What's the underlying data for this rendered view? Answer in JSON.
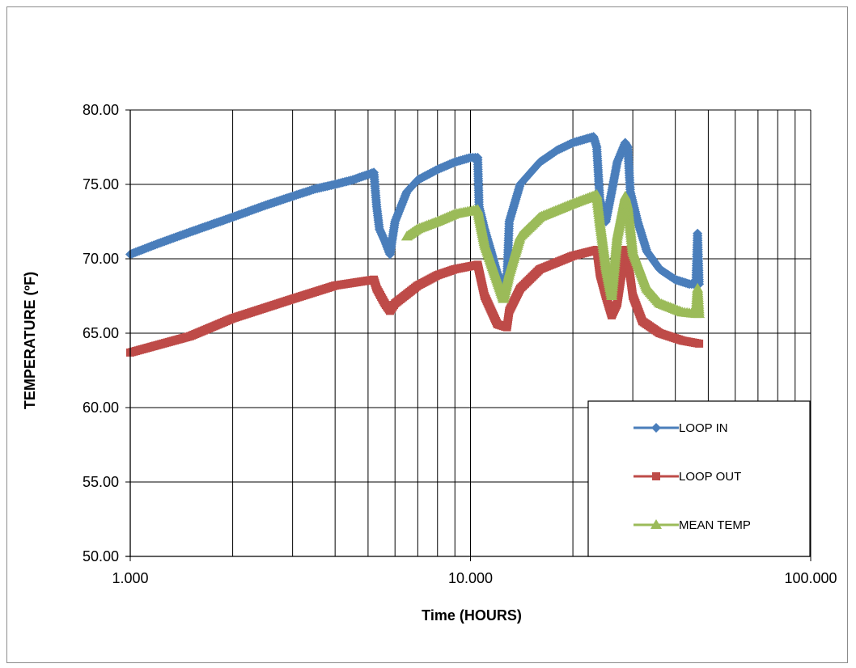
{
  "chart_data": {
    "type": "line",
    "title": "",
    "xlabel": "Time (HOURS)",
    "ylabel": "TEMPERATURE (ºF)",
    "x_scale": "log",
    "xlim": [
      1,
      100
    ],
    "ylim": [
      50,
      80
    ],
    "x_ticks": [
      "1.000",
      "10.000",
      "100.000"
    ],
    "y_ticks": [
      "50.00",
      "55.00",
      "60.00",
      "65.00",
      "70.00",
      "75.00",
      "80.00"
    ],
    "grid": {
      "vertical_major_and_minor": true,
      "horizontal_major": true
    },
    "legend_position": "lower-right",
    "series": [
      {
        "name": "LOOP IN",
        "color": "#4A7EBB",
        "marker": "diamond",
        "points": [
          [
            1.0,
            70.3
          ],
          [
            1.2,
            71.0
          ],
          [
            1.5,
            71.8
          ],
          [
            2.0,
            72.8
          ],
          [
            2.5,
            73.6
          ],
          [
            3.0,
            74.2
          ],
          [
            3.5,
            74.7
          ],
          [
            4.0,
            75.0
          ],
          [
            4.5,
            75.3
          ],
          [
            5.2,
            75.8
          ],
          [
            5.3,
            73.5
          ],
          [
            5.4,
            72.0
          ],
          [
            5.6,
            71.2
          ],
          [
            5.8,
            70.3
          ],
          [
            6.0,
            72.5
          ],
          [
            6.5,
            74.5
          ],
          [
            7.0,
            75.3
          ],
          [
            8.0,
            76.0
          ],
          [
            9.0,
            76.5
          ],
          [
            10.0,
            76.8
          ],
          [
            10.5,
            76.8
          ],
          [
            10.6,
            73.5
          ],
          [
            11.0,
            72.0
          ],
          [
            11.5,
            70.5
          ],
          [
            12.0,
            69.0
          ],
          [
            12.5,
            68.5
          ],
          [
            12.8,
            68.7
          ],
          [
            13.0,
            72.5
          ],
          [
            14.0,
            75.0
          ],
          [
            16.0,
            76.5
          ],
          [
            18.0,
            77.3
          ],
          [
            20.0,
            77.8
          ],
          [
            23.0,
            78.2
          ],
          [
            23.5,
            77.5
          ],
          [
            24.0,
            74.0
          ],
          [
            25.0,
            72.5
          ],
          [
            26.0,
            74.5
          ],
          [
            27.0,
            76.5
          ],
          [
            28.5,
            77.8
          ],
          [
            29.0,
            77.5
          ],
          [
            29.5,
            74.5
          ],
          [
            31.0,
            72.5
          ],
          [
            33.0,
            70.5
          ],
          [
            36.0,
            69.3
          ],
          [
            40.0,
            68.6
          ],
          [
            44.0,
            68.3
          ],
          [
            46.0,
            68.3
          ],
          [
            46.5,
            71.7
          ],
          [
            47.0,
            68.3
          ]
        ]
      },
      {
        "name": "LOOP OUT",
        "color": "#BE4B48",
        "marker": "square",
        "points": [
          [
            1.0,
            63.7
          ],
          [
            1.5,
            64.8
          ],
          [
            2.0,
            66.0
          ],
          [
            3.0,
            67.3
          ],
          [
            4.0,
            68.2
          ],
          [
            5.2,
            68.6
          ],
          [
            5.3,
            68.0
          ],
          [
            5.6,
            67.0
          ],
          [
            5.8,
            66.5
          ],
          [
            6.0,
            67.0
          ],
          [
            7.0,
            68.2
          ],
          [
            8.0,
            68.9
          ],
          [
            9.0,
            69.3
          ],
          [
            10.5,
            69.6
          ],
          [
            11.0,
            67.5
          ],
          [
            12.0,
            65.6
          ],
          [
            12.8,
            65.4
          ],
          [
            13.0,
            66.5
          ],
          [
            14.0,
            68.0
          ],
          [
            16.0,
            69.3
          ],
          [
            20.0,
            70.2
          ],
          [
            23.5,
            70.6
          ],
          [
            24.0,
            69.0
          ],
          [
            25.0,
            67.5
          ],
          [
            26.0,
            66.2
          ],
          [
            27.0,
            67.0
          ],
          [
            28.5,
            70.6
          ],
          [
            29.0,
            70.0
          ],
          [
            30.0,
            67.5
          ],
          [
            32.0,
            65.8
          ],
          [
            36.0,
            65.0
          ],
          [
            42.0,
            64.5
          ],
          [
            47.0,
            64.3
          ]
        ]
      },
      {
        "name": "MEAN TEMP",
        "color": "#9BBB59",
        "marker": "triangle",
        "points": [
          [
            6.5,
            71.5
          ],
          [
            7.0,
            72.0
          ],
          [
            8.0,
            72.5
          ],
          [
            9.0,
            73.0
          ],
          [
            10.5,
            73.3
          ],
          [
            11.0,
            71.0
          ],
          [
            12.0,
            68.5
          ],
          [
            12.5,
            67.3
          ],
          [
            13.0,
            69.0
          ],
          [
            14.0,
            71.5
          ],
          [
            16.0,
            72.8
          ],
          [
            20.0,
            73.7
          ],
          [
            23.5,
            74.3
          ],
          [
            24.0,
            72.5
          ],
          [
            25.0,
            69.5
          ],
          [
            26.0,
            67.5
          ],
          [
            27.0,
            71.5
          ],
          [
            28.5,
            74.2
          ],
          [
            29.0,
            73.5
          ],
          [
            30.0,
            70.5
          ],
          [
            33.0,
            68.0
          ],
          [
            36.0,
            67.0
          ],
          [
            42.0,
            66.4
          ],
          [
            46.0,
            66.3
          ],
          [
            46.5,
            68.0
          ],
          [
            47.0,
            66.3
          ]
        ]
      }
    ]
  }
}
